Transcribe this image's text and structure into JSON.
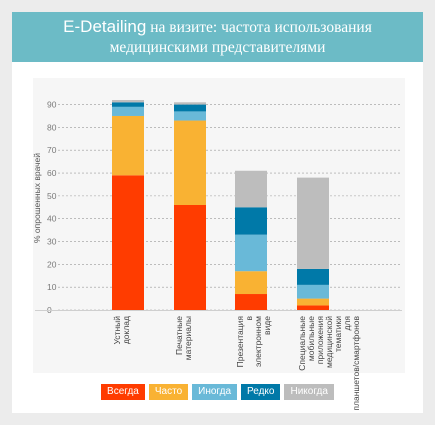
{
  "header": {
    "title_part1": "E-Detailing",
    "title_part2": " на визите: частота использования",
    "title_line2": "медицинскими представителями"
  },
  "chart_data": {
    "type": "bar",
    "stacked": true,
    "title": "E-Detailing на визите: частота использования медицинскими представителями",
    "ylabel": "% опрошенных врачей",
    "xlabel": "",
    "ylim": [
      0,
      92
    ],
    "y_ticks": [
      0,
      10,
      20,
      30,
      40,
      50,
      60,
      70,
      80,
      90
    ],
    "grid": true,
    "legend_position": "bottom",
    "categories": [
      "Устный доклад",
      "Печатные материалы",
      "Презентация в электронном виде",
      "Специальные мобильные приложения медицинской тематики для планшетов/смартфонов",
      ""
    ],
    "series": [
      {
        "name": "Всегда",
        "color": "#ff3c00",
        "values": [
          59,
          46,
          7,
          2,
          0
        ]
      },
      {
        "name": "Часто",
        "color": "#f9b233",
        "values": [
          26,
          37,
          10,
          3,
          0
        ]
      },
      {
        "name": "Иногда",
        "color": "#69b9d8",
        "values": [
          4,
          4,
          16,
          6,
          0
        ]
      },
      {
        "name": "Редко",
        "color": "#0079a8",
        "values": [
          2,
          3,
          12,
          7,
          0
        ]
      },
      {
        "name": "Никогда",
        "color": "#bdbdbd",
        "values": [
          1,
          1,
          16,
          40,
          0
        ]
      }
    ]
  }
}
